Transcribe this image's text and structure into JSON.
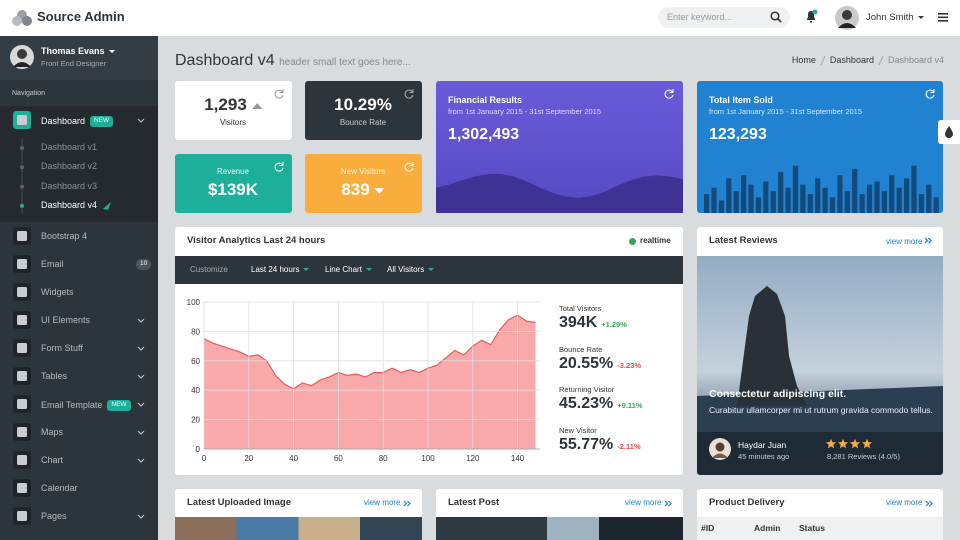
{
  "header": {
    "brand": "Source Admin",
    "search_placeholder": "Enter keyword...",
    "user": "John Smith"
  },
  "sidebar": {
    "profile": {
      "name": "Thomas Evans",
      "role": "Front End Designer"
    },
    "section": "Navigation",
    "items": [
      {
        "label": "Dashboard",
        "badge": "NEW",
        "active": true,
        "caret": true,
        "submenu": [
          "Dashboard v1",
          "Dashboard v2",
          "Dashboard v3",
          "Dashboard v4"
        ],
        "active_sub": 3
      },
      {
        "label": "Bootstrap 4"
      },
      {
        "label": "Email",
        "badge": "10"
      },
      {
        "label": "Widgets"
      },
      {
        "label": "UI Elements",
        "caret": true
      },
      {
        "label": "Form Stuff",
        "caret": true
      },
      {
        "label": "Tables",
        "caret": true
      },
      {
        "label": "Email Template",
        "badge": "NEW",
        "caret": true
      },
      {
        "label": "Maps",
        "caret": true
      },
      {
        "label": "Chart",
        "caret": true
      },
      {
        "label": "Calendar"
      },
      {
        "label": "Pages",
        "caret": true
      }
    ]
  },
  "page_header": {
    "title": "Dashboard v4",
    "subtitle": "header small text goes here...",
    "breadcrumb": [
      "Home",
      "Dashboard",
      "Dashboard v4"
    ]
  },
  "stats": [
    {
      "value": "1,293",
      "label": "Visitors",
      "trend": "up"
    },
    {
      "value": "10.29%",
      "label": "Bounce Rate"
    },
    {
      "value": "$139K",
      "label": "Revenue"
    },
    {
      "value": "839",
      "label": "New Visitors",
      "trend": "down"
    }
  ],
  "financial": {
    "title": "Financial Results",
    "range": "from 1st January 2015 - 31st September 2015",
    "value": "1,302,493",
    "wave": {
      "ylim": [
        0,
        100
      ],
      "values": [
        40,
        45,
        52,
        58,
        62,
        62,
        58,
        50,
        40,
        32,
        26,
        24,
        27,
        34,
        44,
        52,
        58,
        60,
        58,
        54
      ]
    }
  },
  "items_sold": {
    "title": "Total Item Sold",
    "range": "from 1st January 2015 - 31st September 2015",
    "value": "123,293",
    "bars": {
      "ylim": [
        0,
        100
      ],
      "values": [
        30,
        40,
        20,
        55,
        35,
        60,
        45,
        25,
        50,
        35,
        65,
        40,
        75,
        45,
        30,
        55,
        40,
        25,
        60,
        35,
        70,
        30,
        45,
        50,
        35,
        60,
        40,
        55,
        75,
        30,
        45,
        25
      ]
    }
  },
  "visitor_analytics": {
    "title": "Visitor Analytics Last 24 hours",
    "status": "realtime",
    "toolbar": [
      "Customize",
      "Last 24 hours",
      "Line Chart",
      "All Visitors"
    ],
    "chart": {
      "type": "area",
      "x": [
        0,
        4,
        8,
        12,
        16,
        20,
        24,
        28,
        32,
        36,
        40,
        44,
        48,
        52,
        56,
        60,
        64,
        68,
        72,
        76,
        80,
        84,
        88,
        92,
        96,
        100,
        104,
        108,
        112,
        116,
        120,
        124,
        128,
        132,
        136,
        140,
        144,
        148
      ],
      "values": [
        75,
        72,
        70,
        68,
        66,
        63,
        64,
        60,
        50,
        44,
        41,
        45,
        43,
        47,
        49,
        52,
        50,
        51,
        49,
        52,
        52,
        55,
        52,
        54,
        52,
        55,
        57,
        62,
        67,
        64,
        70,
        74,
        71,
        81,
        88,
        91,
        87,
        86
      ],
      "xlim": [
        0,
        150
      ],
      "ylim": [
        0,
        100
      ],
      "xticks": [
        0,
        20,
        40,
        60,
        80,
        100,
        120,
        140
      ],
      "yticks": [
        0,
        20,
        40,
        60,
        80,
        100
      ],
      "color": "#f9a9a9",
      "line_color": "#e85a5a",
      "grid": true
    },
    "stats": [
      {
        "label": "Total Visitors",
        "value": "394K",
        "change": "+1.29%",
        "direction": "up"
      },
      {
        "label": "Bounce Rate",
        "value": "20.55%",
        "change": "-3.23%",
        "direction": "down"
      },
      {
        "label": "Returning Visitor",
        "value": "45.23%",
        "change": "+9.11%",
        "direction": "up"
      },
      {
        "label": "New Visitor",
        "value": "55.77%",
        "change": "-2.11%",
        "direction": "down"
      }
    ]
  },
  "reviews": {
    "title": "Latest Reviews",
    "link": "view more",
    "caption": "Consectetur adipiscing elit.",
    "text": "Curabitur ullamcorper mi ut rutrum gravida commodo tellus.",
    "reviewer": "Haydar Juan",
    "time": "45 minutes ago",
    "rating": 4,
    "count": "8,281 Reviews (4.0/5)"
  },
  "bottom_panels": [
    {
      "title": "Latest Uploaded Image",
      "link": "view more"
    },
    {
      "title": "Latest Post",
      "link": "view more"
    },
    {
      "title": "Product Delivery",
      "link": "view more",
      "columns": [
        "#ID",
        "Admin",
        "Status"
      ]
    }
  ]
}
